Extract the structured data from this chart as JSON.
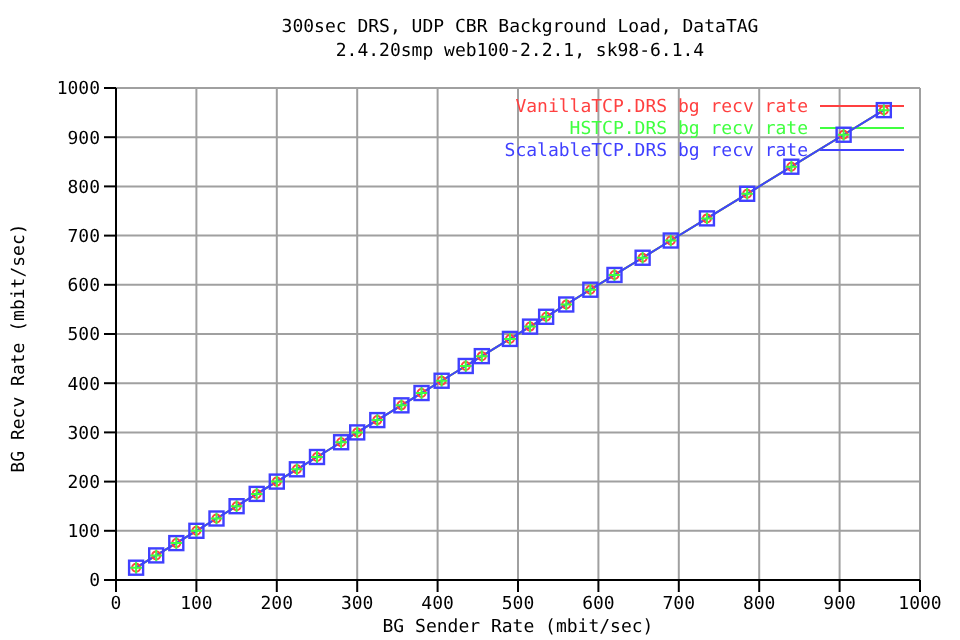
{
  "chart_data": {
    "type": "line",
    "title": "300sec DRS, UDP CBR Background Load, DataTAG",
    "subtitle": "2.4.20smp web100-2.2.1, sk98-6.1.4",
    "xlabel": "BG Sender Rate (mbit/sec)",
    "ylabel": "BG Recv Rate (mbit/sec)",
    "x": [
      25,
      50,
      75,
      100,
      125,
      150,
      175,
      200,
      225,
      250,
      280,
      300,
      325,
      355,
      380,
      405,
      435,
      455,
      490,
      515,
      535,
      560,
      590,
      620,
      655,
      690,
      735,
      785,
      840,
      905,
      955
    ],
    "series": [
      {
        "name": "VanillaTCP.DRS bg recv rate",
        "color": "#ff4040",
        "marker": "circle",
        "values": [
          25,
          50,
          75,
          100,
          125,
          150,
          175,
          200,
          225,
          250,
          280,
          300,
          325,
          355,
          380,
          405,
          435,
          455,
          490,
          515,
          535,
          560,
          590,
          620,
          655,
          690,
          735,
          785,
          840,
          905,
          955
        ]
      },
      {
        "name": "HSTCP.DRS bg recv rate",
        "color": "#40ff40",
        "marker": "cross",
        "values": [
          25,
          50,
          75,
          100,
          125,
          150,
          175,
          200,
          225,
          250,
          280,
          300,
          325,
          355,
          380,
          405,
          435,
          455,
          490,
          515,
          535,
          560,
          590,
          620,
          655,
          690,
          735,
          785,
          840,
          905,
          955
        ]
      },
      {
        "name": "ScalableTCP.DRS bg recv rate",
        "color": "#4040ff",
        "marker": "square",
        "values": [
          25,
          50,
          75,
          100,
          125,
          150,
          175,
          200,
          225,
          250,
          280,
          300,
          325,
          355,
          380,
          405,
          435,
          455,
          490,
          515,
          535,
          560,
          590,
          620,
          655,
          690,
          735,
          785,
          840,
          905,
          955
        ]
      }
    ],
    "xlim": [
      0,
      1000
    ],
    "ylim": [
      0,
      1000
    ],
    "xticks": [
      0,
      100,
      200,
      300,
      400,
      500,
      600,
      700,
      800,
      900,
      1000
    ],
    "yticks": [
      0,
      100,
      200,
      300,
      400,
      500,
      600,
      700,
      800,
      900,
      1000
    ],
    "grid": true,
    "legend": "top right",
    "line_style": "solid"
  }
}
